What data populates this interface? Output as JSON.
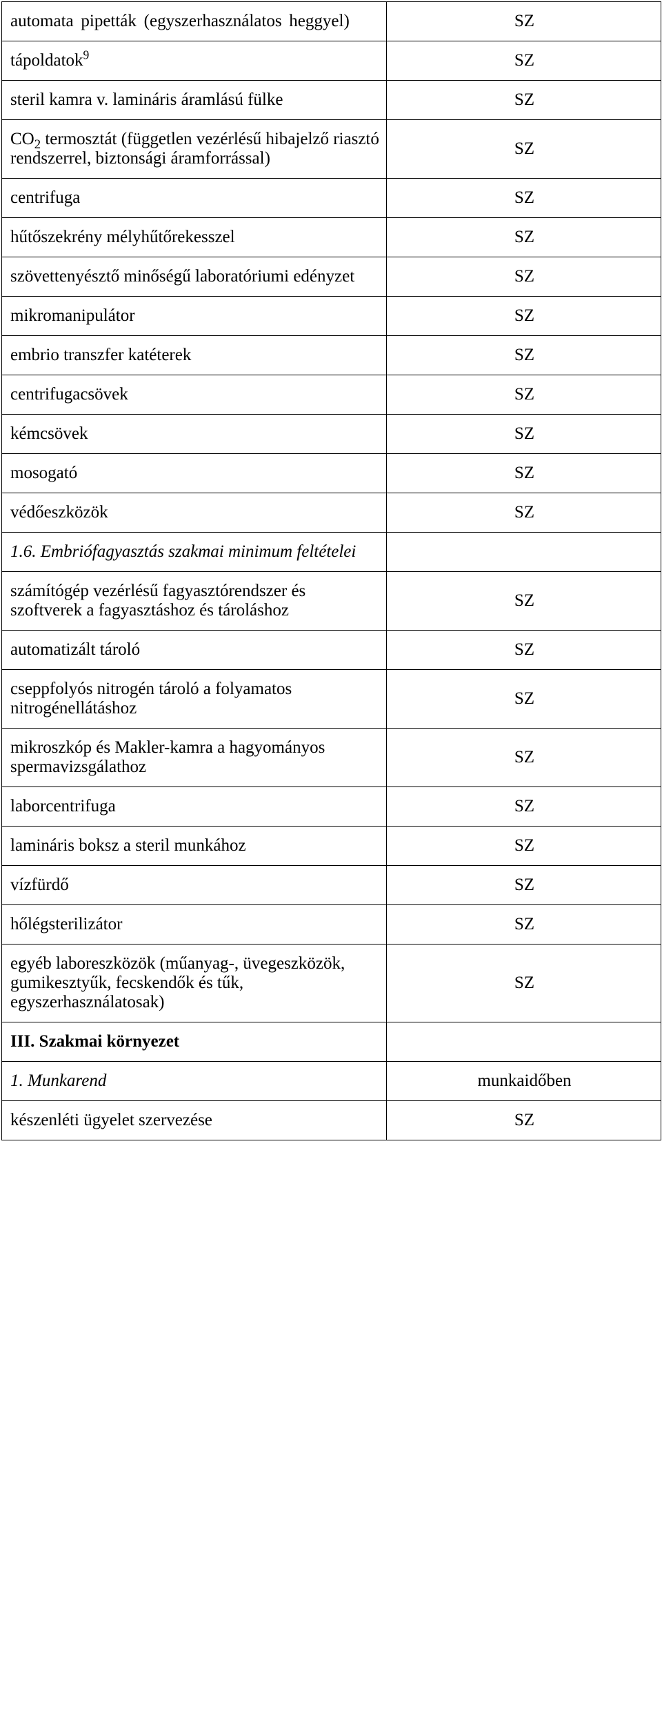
{
  "rows": [
    {
      "label_parts": [
        "automata pipetták (egyszerhasználatos heggyel)"
      ],
      "value": "SZ",
      "label_classes": "justify loose"
    },
    {
      "label_parts": [
        "tápoldatok",
        {
          "sup": "9"
        }
      ],
      "value": "SZ"
    },
    {
      "label_parts": [
        "steril kamra v. lamináris áramlású fülke"
      ],
      "value": "SZ"
    },
    {
      "label_parts": [
        "CO",
        {
          "sub": "2"
        },
        " termosztát (független vezérlésű hibajelző riasztó rendszerrel, biztonsági áramforrással)"
      ],
      "value": "SZ",
      "label_classes": "justify"
    },
    {
      "label_parts": [
        "centrifuga"
      ],
      "value": "SZ"
    },
    {
      "label_parts": [
        "hűtőszekrény mélyhűtőrekesszel"
      ],
      "value": "SZ"
    },
    {
      "label_parts": [
        "szövettenyésztő minőségű laboratóriumi edényzet"
      ],
      "value": "SZ",
      "label_classes": "justify"
    },
    {
      "label_parts": [
        "mikromanipulátor"
      ],
      "value": "SZ"
    },
    {
      "label_parts": [
        "embrio transzfer katéterek"
      ],
      "value": "SZ"
    },
    {
      "label_parts": [
        "centrifugacsövek"
      ],
      "value": "SZ"
    },
    {
      "label_parts": [
        "kémcsövek"
      ],
      "value": "SZ"
    },
    {
      "label_parts": [
        "mosogató"
      ],
      "value": "SZ"
    },
    {
      "label_parts": [
        "védőeszközök"
      ],
      "value": "SZ"
    },
    {
      "label_parts": [
        "1.6. Embriófagyasztás szakmai minimum feltételei"
      ],
      "value": "",
      "label_classes": "italic"
    },
    {
      "label_parts": [
        "számítógép vezérlésű fagyasztórendszer és szoftverek a fagyasztáshoz és tároláshoz"
      ],
      "value": "SZ",
      "label_classes": "justify"
    },
    {
      "label_parts": [
        "automatizált tároló"
      ],
      "value": "SZ"
    },
    {
      "label_parts": [
        "cseppfolyós nitrogén tároló a folyamatos nitrogénellátáshoz"
      ],
      "value": "SZ",
      "label_classes": "justify"
    },
    {
      "label_parts": [
        "mikroszkóp és Makler-kamra a hagyományos spermavizsgálathoz"
      ],
      "value": "SZ",
      "label_classes": "justify"
    },
    {
      "label_parts": [
        "laborcentrifuga"
      ],
      "value": "SZ"
    },
    {
      "label_parts": [
        "lamináris boksz a steril munkához"
      ],
      "value": "SZ"
    },
    {
      "label_parts": [
        "vízfürdő"
      ],
      "value": "SZ"
    },
    {
      "label_parts": [
        "hőlégsterilizátor"
      ],
      "value": "SZ"
    },
    {
      "label_parts": [
        "egyéb laboreszközök (műanyag-, üvegeszközök, gumikesztyűk, fecskendők és tűk, egyszerhasználatosak)"
      ],
      "value": "SZ",
      "label_classes": "justify"
    },
    {
      "label_parts": [
        "III. Szakmai környezet"
      ],
      "value": "",
      "label_classes": "bold"
    },
    {
      "label_parts": [
        "1. Munkarend"
      ],
      "value": "munkaidőben",
      "label_classes": "italic"
    },
    {
      "label_parts": [
        "készenléti ügyelet szervezése"
      ],
      "value": "SZ"
    }
  ]
}
